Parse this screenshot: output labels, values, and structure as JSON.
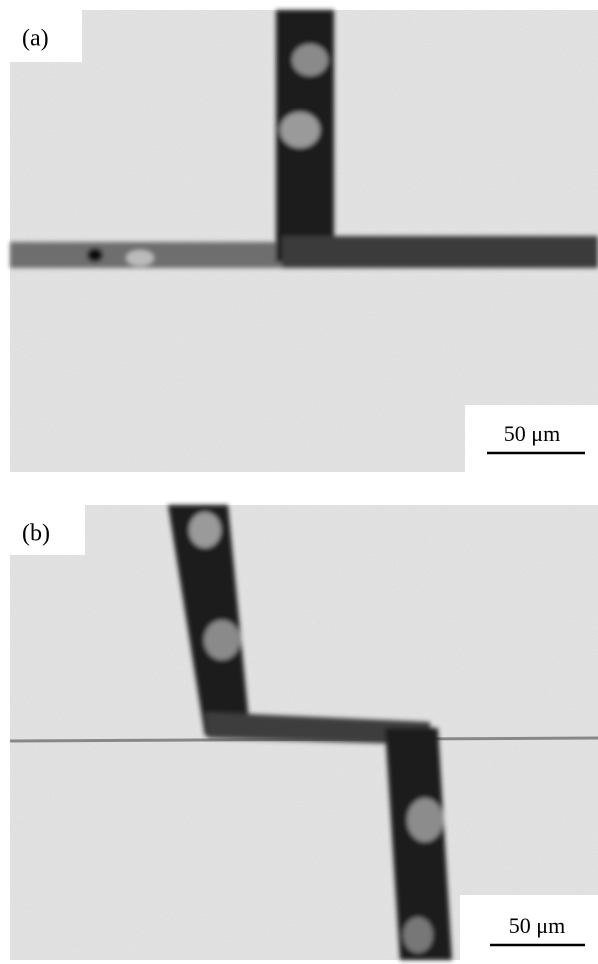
{
  "panels": [
    {
      "label": "(a)",
      "scale_bar": "50 μm"
    },
    {
      "label": "(b)",
      "scale_bar": "50 μm"
    }
  ]
}
